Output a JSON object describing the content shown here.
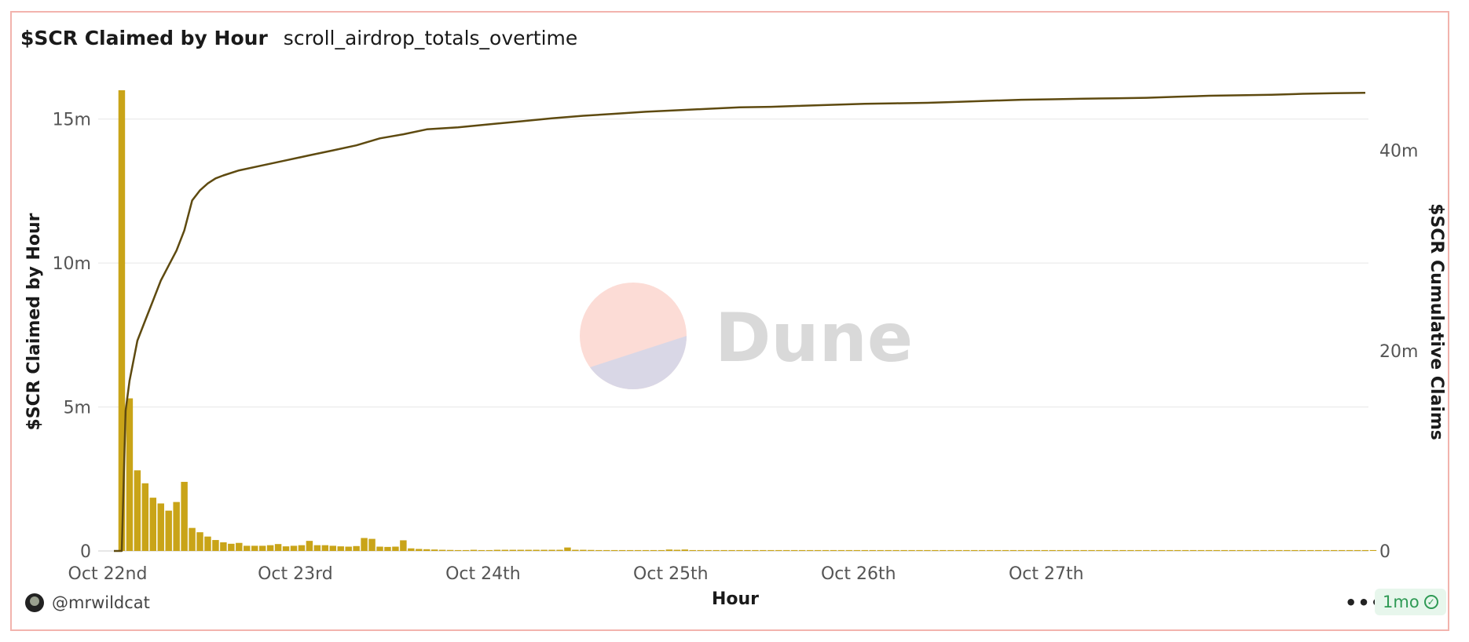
{
  "card": {
    "title": "$SCR Claimed by Hour",
    "query_name": "scroll_airdrop_totals_overtime"
  },
  "footer": {
    "author": "@mrwildcat",
    "more_label": "•••",
    "freshness": "1mo"
  },
  "watermark": {
    "text": "Dune"
  },
  "colors": {
    "bars": "#c9a418",
    "line": "#5e4a10",
    "grid": "#e6e6e6"
  },
  "chart_data": {
    "type": "bar+line",
    "xlabel": "Hour",
    "ylabel_left": "$SCR Claimed by Hour",
    "ylabel_right": "$SCR Cumulative Claims",
    "x_start": "Oct 22nd 00:00",
    "hours_total": 160,
    "x_ticks": [
      {
        "label": "Oct 22nd",
        "hour": 0
      },
      {
        "label": "Oct 23rd",
        "hour": 24
      },
      {
        "label": "Oct 24th",
        "hour": 48
      },
      {
        "label": "Oct 25th",
        "hour": 72
      },
      {
        "label": "Oct 26th",
        "hour": 96
      },
      {
        "label": "Oct 27th",
        "hour": 120
      }
    ],
    "ylim_left": [
      0,
      16000000
    ],
    "ylim_right": [
      0,
      46000000
    ],
    "y_ticks_left": [
      {
        "label": "0",
        "value": 0
      },
      {
        "label": "5m",
        "value": 5000000
      },
      {
        "label": "10m",
        "value": 10000000
      },
      {
        "label": "15m",
        "value": 15000000
      }
    ],
    "y_ticks_right": [
      {
        "label": "0",
        "value": 0
      },
      {
        "label": "20m",
        "value": 20000000
      },
      {
        "label": "40m",
        "value": 40000000
      }
    ],
    "series": [
      {
        "name": "$SCR Claimed by Hour",
        "type": "bar",
        "axis": "left",
        "start_hour": 1,
        "values": [
          16000000,
          5300000,
          2800000,
          2350000,
          1850000,
          1650000,
          1400000,
          1700000,
          2400000,
          800000,
          650000,
          500000,
          380000,
          300000,
          250000,
          280000,
          180000,
          180000,
          180000,
          200000,
          240000,
          160000,
          180000,
          200000,
          350000,
          200000,
          200000,
          180000,
          160000,
          150000,
          170000,
          450000,
          420000,
          150000,
          140000,
          150000,
          370000,
          90000,
          70000,
          60000,
          50000,
          40000,
          35000,
          30000,
          30000,
          40000,
          30000,
          30000,
          40000,
          40000,
          40000,
          40000,
          40000,
          40000,
          40000,
          40000,
          40000,
          120000,
          40000,
          40000,
          35000,
          30000,
          30000,
          30000,
          30000,
          30000,
          30000,
          30000,
          30000,
          30000,
          50000,
          40000,
          50000,
          30000,
          30000,
          30000,
          30000,
          30000,
          30000,
          30000,
          30000,
          30000,
          30000,
          30000,
          30000,
          30000,
          30000,
          30000,
          30000,
          30000,
          30000,
          30000,
          30000,
          30000,
          30000,
          30000,
          30000,
          30000,
          30000,
          30000,
          30000,
          30000,
          30000,
          30000,
          30000,
          30000,
          30000,
          30000,
          30000,
          30000,
          30000,
          30000,
          30000,
          30000,
          30000,
          30000,
          30000,
          30000,
          30000,
          30000,
          30000,
          30000,
          30000,
          30000,
          30000,
          30000,
          30000,
          30000,
          30000,
          30000,
          30000,
          30000,
          30000,
          30000,
          30000,
          30000,
          30000,
          30000,
          30000,
          30000,
          30000,
          30000,
          30000,
          30000,
          30000,
          30000,
          30000,
          30000,
          30000,
          30000,
          30000,
          30000,
          30000,
          30000,
          30000,
          30000,
          30000,
          30000,
          30000,
          30000,
          30000
        ]
      },
      {
        "name": "$SCR Cumulative Claims",
        "type": "line",
        "axis": "right",
        "points": [
          [
            0,
            0
          ],
          [
            1,
            0
          ],
          [
            1.5,
            14000000
          ],
          [
            2,
            17000000
          ],
          [
            3,
            21000000
          ],
          [
            4,
            23000000
          ],
          [
            5,
            25000000
          ],
          [
            6,
            27000000
          ],
          [
            7,
            28500000
          ],
          [
            8,
            30000000
          ],
          [
            9,
            32000000
          ],
          [
            10,
            35000000
          ],
          [
            11,
            36000000
          ],
          [
            12,
            36700000
          ],
          [
            13,
            37200000
          ],
          [
            14,
            37500000
          ],
          [
            16,
            38000000
          ],
          [
            19,
            38500000
          ],
          [
            22,
            39000000
          ],
          [
            25,
            39500000
          ],
          [
            28,
            40000000
          ],
          [
            31,
            40500000
          ],
          [
            34,
            41200000
          ],
          [
            37,
            41600000
          ],
          [
            40,
            42100000
          ],
          [
            44,
            42300000
          ],
          [
            48,
            42600000
          ],
          [
            52,
            42900000
          ],
          [
            56,
            43200000
          ],
          [
            60,
            43450000
          ],
          [
            64,
            43650000
          ],
          [
            68,
            43850000
          ],
          [
            72,
            44000000
          ],
          [
            76,
            44150000
          ],
          [
            80,
            44300000
          ],
          [
            84,
            44350000
          ],
          [
            88,
            44450000
          ],
          [
            92,
            44550000
          ],
          [
            96,
            44650000
          ],
          [
            100,
            44700000
          ],
          [
            104,
            44750000
          ],
          [
            108,
            44850000
          ],
          [
            112,
            44950000
          ],
          [
            116,
            45050000
          ],
          [
            120,
            45100000
          ],
          [
            124,
            45150000
          ],
          [
            128,
            45200000
          ],
          [
            132,
            45250000
          ],
          [
            136,
            45350000
          ],
          [
            140,
            45450000
          ],
          [
            144,
            45500000
          ],
          [
            148,
            45550000
          ],
          [
            152,
            45650000
          ],
          [
            156,
            45700000
          ],
          [
            160,
            45750000
          ]
        ]
      }
    ]
  }
}
